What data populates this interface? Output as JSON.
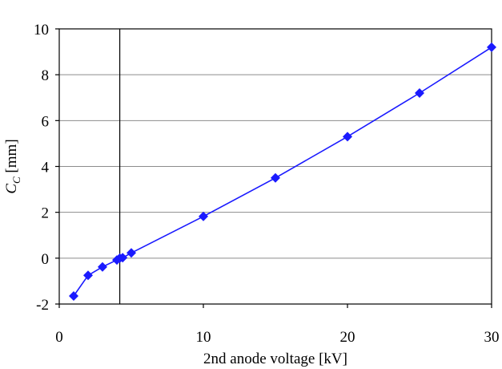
{
  "chart_data": {
    "type": "line",
    "title": "",
    "xlabel": "2nd anode voltage [kV]",
    "ylabel": {
      "main": "C",
      "sub": "C",
      "unit": " [mm]"
    },
    "xlim": [
      0,
      30
    ],
    "ylim": [
      -2,
      10
    ],
    "xticks": [
      0,
      10,
      20,
      30
    ],
    "yticks": [
      -2,
      0,
      2,
      4,
      6,
      8,
      10
    ],
    "grid": "horizontal",
    "reference_line_x": 4.2,
    "series": [
      {
        "color": "#1a1aff",
        "marker": "diamond",
        "x": [
          1,
          2,
          3,
          4,
          4.2,
          4.4,
          5,
          10,
          15,
          20,
          25,
          30
        ],
        "y": [
          -1.65,
          -0.75,
          -0.38,
          -0.08,
          0.0,
          0.02,
          0.23,
          1.82,
          3.5,
          5.3,
          7.2,
          9.2
        ]
      }
    ]
  }
}
